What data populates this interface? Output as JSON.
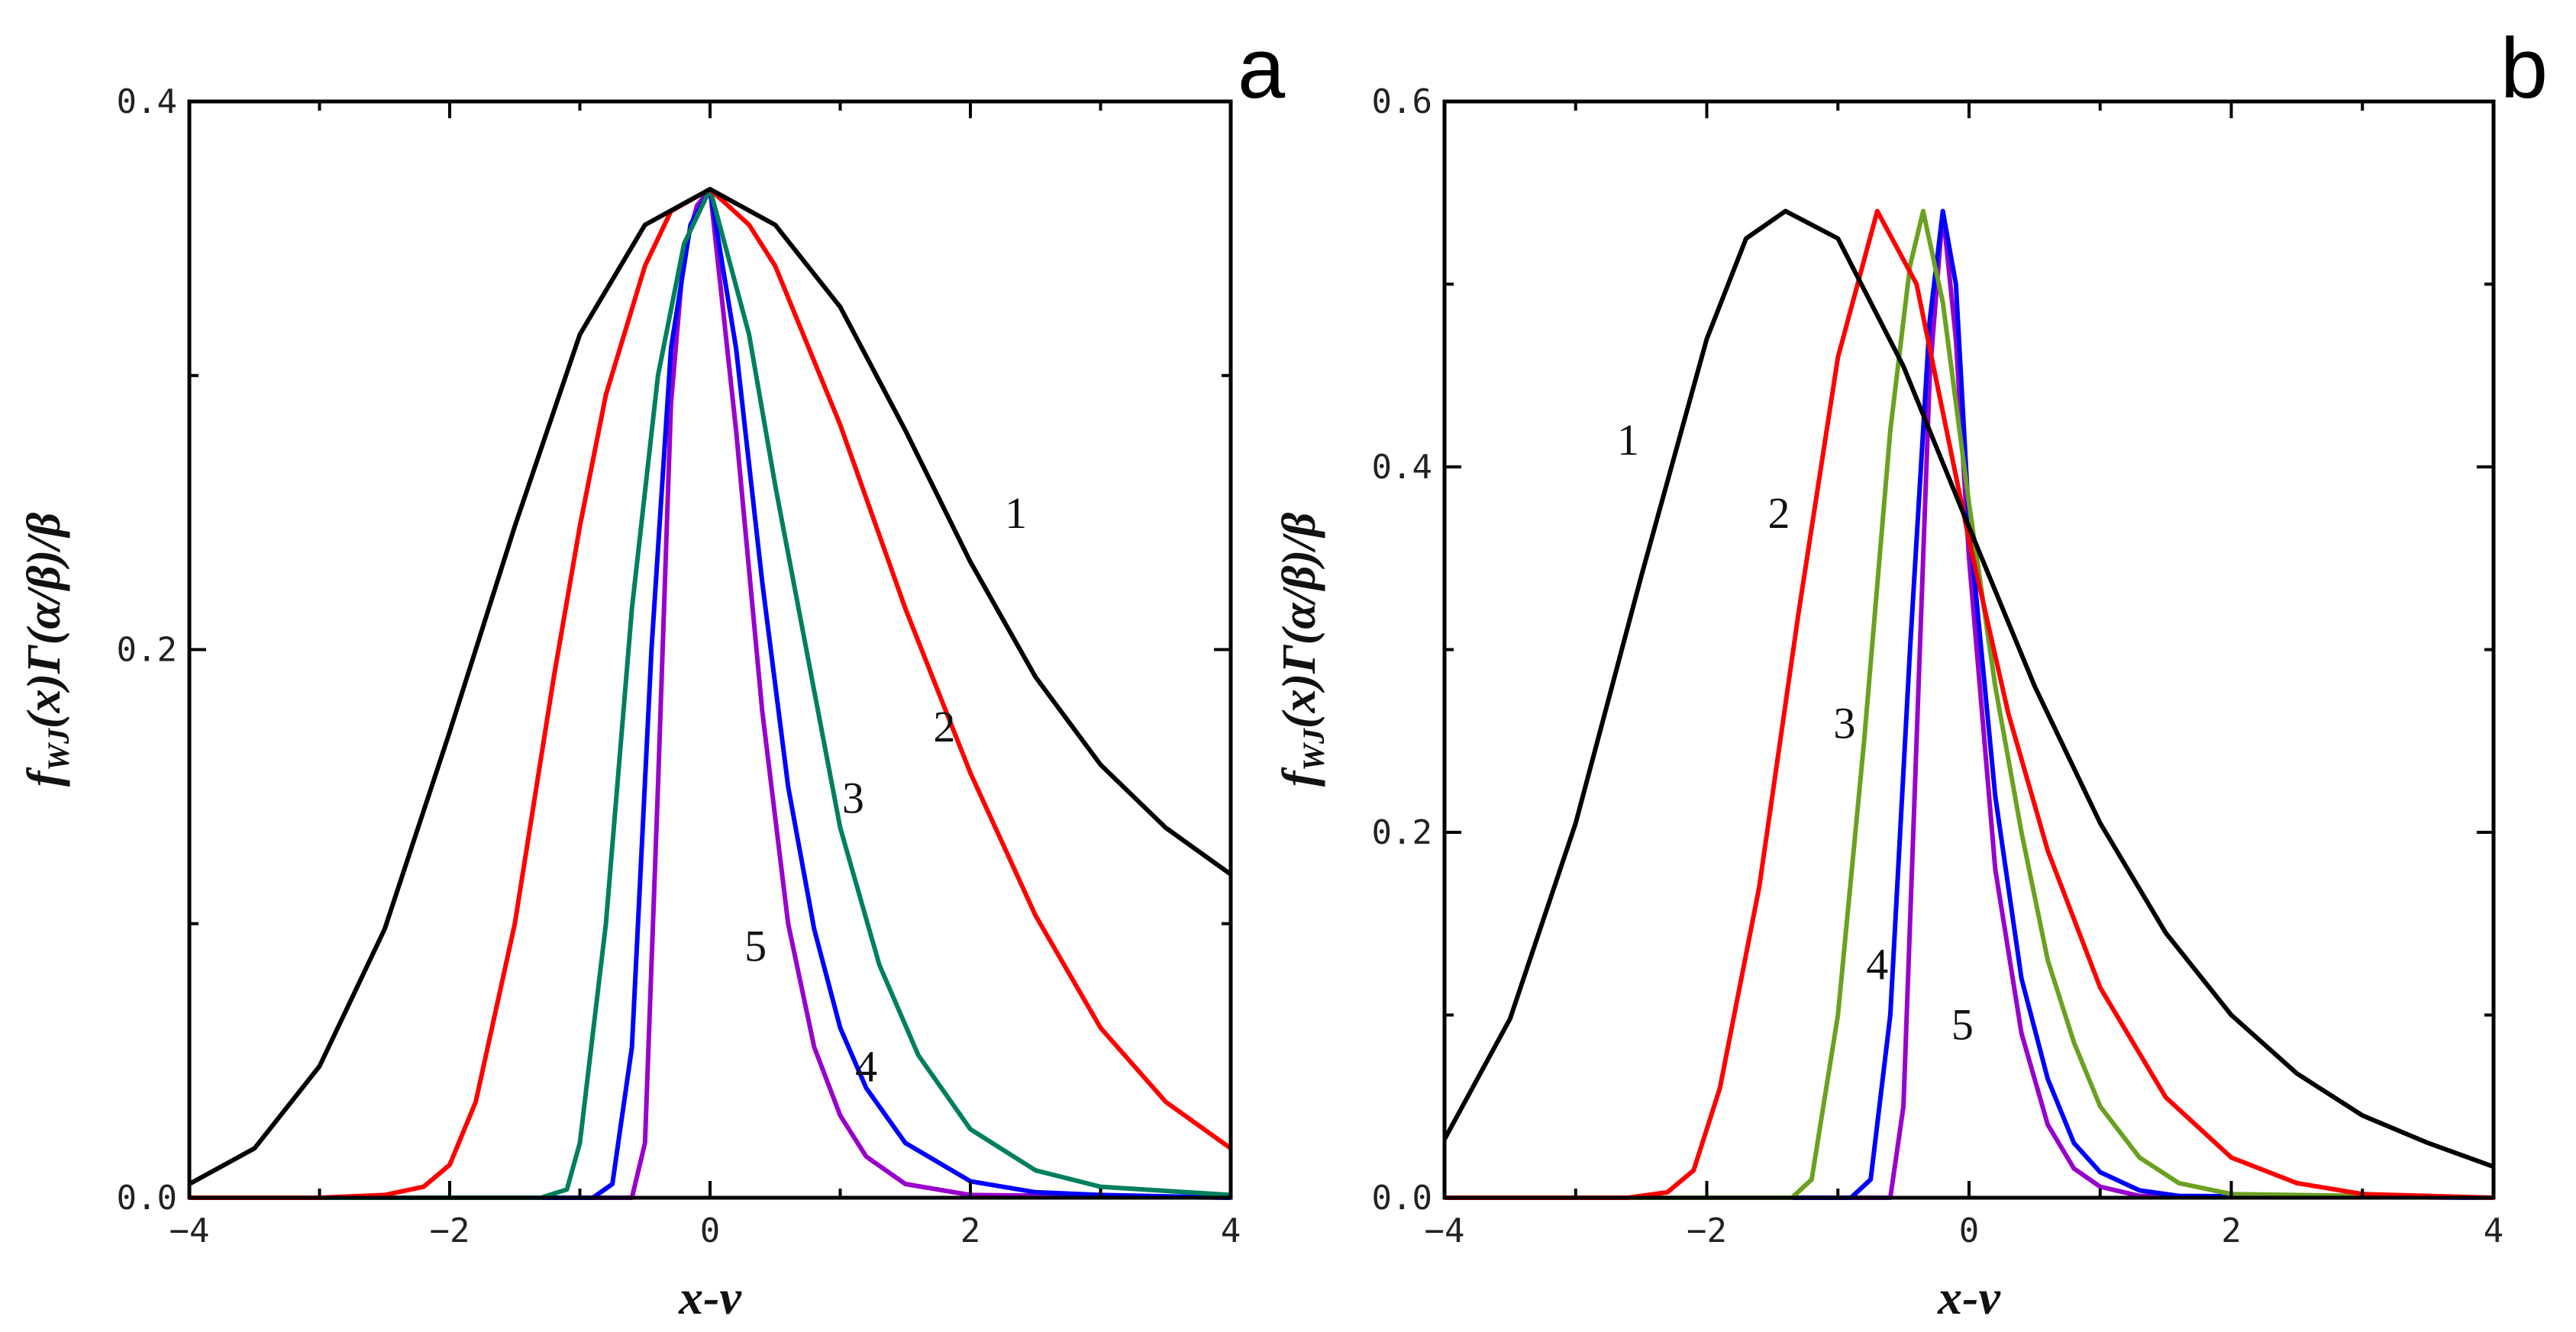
{
  "chart_data": [
    {
      "type": "line",
      "panel_label": "a",
      "xlabel": "x-ν",
      "ylabel_main": "f",
      "ylabel_sub": "WJ",
      "ylabel_rest": "(x)Γ(α/β)/β",
      "xlim": [
        -4,
        4
      ],
      "ylim": [
        0,
        0.4
      ],
      "xticks": [
        -4,
        -2,
        0,
        2,
        4
      ],
      "xtick_labels": [
        "−4",
        "−2",
        "0",
        "2",
        "4"
      ],
      "yticks": [
        0.0,
        0.2,
        0.4
      ],
      "ytick_labels": [
        "0.0",
        "0.2",
        "0.4"
      ],
      "series": [
        {
          "name": "1",
          "color": "#000000",
          "x": [
            -4,
            -3.5,
            -3,
            -2.5,
            -2,
            -1.5,
            -1,
            -0.5,
            0,
            0.5,
            1,
            1.5,
            2,
            2.5,
            3,
            3.5,
            4
          ],
          "y": [
            0.005,
            0.018,
            0.048,
            0.098,
            0.17,
            0.245,
            0.315,
            0.355,
            0.368,
            0.355,
            0.325,
            0.28,
            0.232,
            0.19,
            0.158,
            0.135,
            0.118
          ]
        },
        {
          "name": "2",
          "color": "#ff0000",
          "x": [
            -4,
            -3,
            -2.5,
            -2.2,
            -2,
            -1.8,
            -1.5,
            -1.2,
            -1,
            -0.8,
            -0.5,
            -0.3,
            0,
            0.3,
            0.5,
            1,
            1.5,
            2,
            2.5,
            3,
            3.5,
            4
          ],
          "y": [
            0,
            0,
            0.001,
            0.004,
            0.012,
            0.035,
            0.1,
            0.19,
            0.245,
            0.293,
            0.34,
            0.36,
            0.368,
            0.355,
            0.34,
            0.282,
            0.215,
            0.155,
            0.103,
            0.062,
            0.035,
            0.018
          ]
        },
        {
          "name": "3",
          "color": "#007f5f",
          "x": [
            -4,
            -1.3,
            -1.1,
            -1,
            -0.8,
            -0.6,
            -0.4,
            -0.2,
            0,
            0.3,
            0.5,
            0.8,
            1,
            1.3,
            1.6,
            2,
            2.5,
            3,
            4
          ],
          "y": [
            0,
            0,
            0.003,
            0.02,
            0.1,
            0.215,
            0.3,
            0.348,
            0.368,
            0.315,
            0.26,
            0.185,
            0.135,
            0.085,
            0.052,
            0.025,
            0.01,
            0.004,
            0.001
          ]
        },
        {
          "name": "4",
          "color": "#0000ff",
          "x": [
            -4,
            -0.9,
            -0.75,
            -0.6,
            -0.45,
            -0.3,
            -0.15,
            0,
            0.2,
            0.4,
            0.6,
            0.8,
            1,
            1.2,
            1.5,
            2,
            2.5,
            3,
            4
          ],
          "y": [
            0,
            0,
            0.005,
            0.055,
            0.2,
            0.31,
            0.355,
            0.368,
            0.31,
            0.225,
            0.15,
            0.098,
            0.062,
            0.04,
            0.02,
            0.006,
            0.002,
            0.001,
            0
          ]
        },
        {
          "name": "5",
          "color": "#9900cc",
          "x": [
            -4,
            -0.6,
            -0.5,
            -0.4,
            -0.3,
            -0.2,
            -0.1,
            0,
            0.2,
            0.4,
            0.6,
            0.8,
            1,
            1.2,
            1.5,
            2,
            4
          ],
          "y": [
            0,
            0,
            0.02,
            0.15,
            0.29,
            0.345,
            0.362,
            0.368,
            0.28,
            0.178,
            0.1,
            0.055,
            0.03,
            0.015,
            0.005,
            0.001,
            0
          ]
        }
      ],
      "curve_labels": [
        {
          "text": "1",
          "x": 2.35,
          "y": 0.25
        },
        {
          "text": "2",
          "x": 1.8,
          "y": 0.172
        },
        {
          "text": "3",
          "x": 1.1,
          "y": 0.146
        },
        {
          "text": "4",
          "x": 1.2,
          "y": 0.048
        },
        {
          "text": "5",
          "x": 0.35,
          "y": 0.092
        }
      ]
    },
    {
      "type": "line",
      "panel_label": "b",
      "xlabel": "x-ν",
      "ylabel_main": "f",
      "ylabel_sub": "WJ",
      "ylabel_rest": "(x)Γ(α/β)/β",
      "xlim": [
        -4,
        4
      ],
      "ylim": [
        0,
        0.6
      ],
      "xticks": [
        -4,
        -2,
        0,
        2,
        4
      ],
      "xtick_labels": [
        "−4",
        "−2",
        "0",
        "2",
        "4"
      ],
      "yticks": [
        0.0,
        0.2,
        0.4,
        0.6
      ],
      "ytick_labels": [
        "0.0",
        "0.2",
        "0.4",
        "0.6"
      ],
      "series": [
        {
          "name": "1",
          "color": "#000000",
          "x": [
            -4,
            -3.5,
            -3,
            -2.5,
            -2,
            -1.7,
            -1.4,
            -1,
            -0.5,
            0,
            0.5,
            1,
            1.5,
            2,
            2.5,
            3,
            3.5,
            4
          ],
          "y": [
            0.032,
            0.098,
            0.205,
            0.34,
            0.47,
            0.525,
            0.54,
            0.525,
            0.455,
            0.367,
            0.28,
            0.205,
            0.145,
            0.1,
            0.068,
            0.045,
            0.03,
            0.017
          ]
        },
        {
          "name": "2",
          "color": "#ff0000",
          "x": [
            -4,
            -2.6,
            -2.3,
            -2.1,
            -1.9,
            -1.6,
            -1.3,
            -1,
            -0.7,
            -0.4,
            -0.2,
            0,
            0.3,
            0.6,
            1,
            1.5,
            2,
            2.5,
            3,
            4
          ],
          "y": [
            0,
            0,
            0.003,
            0.015,
            0.06,
            0.17,
            0.32,
            0.46,
            0.54,
            0.5,
            0.43,
            0.36,
            0.265,
            0.19,
            0.115,
            0.055,
            0.022,
            0.008,
            0.002,
            0
          ]
        },
        {
          "name": "3",
          "color": "#6aa121",
          "x": [
            -4,
            -1.35,
            -1.2,
            -1,
            -0.8,
            -0.6,
            -0.45,
            -0.35,
            -0.2,
            0,
            0.2,
            0.4,
            0.6,
            0.8,
            1,
            1.3,
            1.6,
            2,
            4
          ],
          "y": [
            0,
            0,
            0.01,
            0.1,
            0.25,
            0.42,
            0.51,
            0.54,
            0.49,
            0.38,
            0.28,
            0.2,
            0.13,
            0.085,
            0.05,
            0.022,
            0.008,
            0.002,
            0
          ]
        },
        {
          "name": "4",
          "color": "#0000ff",
          "x": [
            -4,
            -0.9,
            -0.75,
            -0.6,
            -0.45,
            -0.3,
            -0.2,
            -0.1,
            0,
            0.2,
            0.4,
            0.6,
            0.8,
            1,
            1.3,
            1.6,
            4
          ],
          "y": [
            0,
            0,
            0.01,
            0.1,
            0.3,
            0.48,
            0.54,
            0.5,
            0.37,
            0.22,
            0.12,
            0.065,
            0.03,
            0.014,
            0.004,
            0.001,
            0
          ]
        },
        {
          "name": "5",
          "color": "#9900cc",
          "x": [
            -4,
            -0.6,
            -0.5,
            -0.4,
            -0.3,
            -0.2,
            -0.1,
            0,
            0.2,
            0.4,
            0.6,
            0.8,
            1,
            1.3,
            4
          ],
          "y": [
            0,
            0,
            0.05,
            0.25,
            0.45,
            0.54,
            0.47,
            0.35,
            0.18,
            0.09,
            0.04,
            0.016,
            0.006,
            0.001,
            0
          ]
        }
      ],
      "curve_labels": [
        {
          "text": "1",
          "x": -2.6,
          "y": 0.415
        },
        {
          "text": "2",
          "x": -1.45,
          "y": 0.375
        },
        {
          "text": "3",
          "x": -0.95,
          "y": 0.26
        },
        {
          "text": "4",
          "x": -0.7,
          "y": 0.128
        },
        {
          "text": "5",
          "x": -0.05,
          "y": 0.095
        }
      ]
    }
  ]
}
